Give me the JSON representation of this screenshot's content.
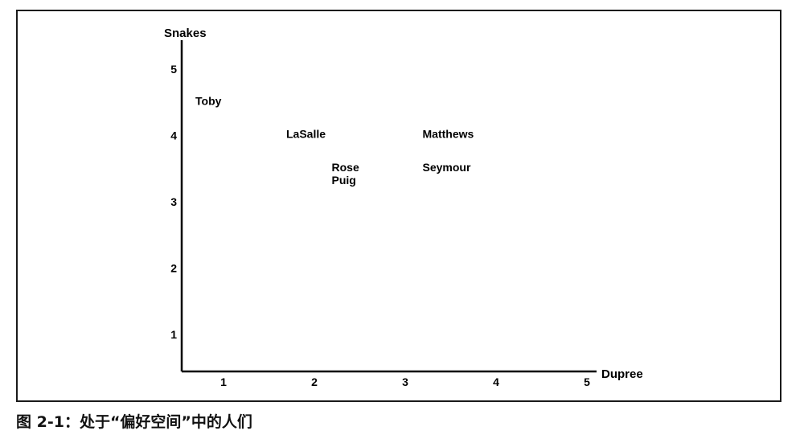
{
  "caption": "图 2-1：处于“偏好空间”中的人们",
  "chart_data": {
    "type": "scatter",
    "title": "",
    "xlabel": "Dupree",
    "ylabel": "Snakes",
    "xlim": [
      0.5,
      5.0
    ],
    "ylim": [
      0.4,
      5.5
    ],
    "x_ticks": [
      "1",
      "2",
      "3",
      "4",
      "5"
    ],
    "y_ticks": [
      "1",
      "2",
      "3",
      "4",
      "5"
    ],
    "grid": false,
    "legend": "none",
    "points": [
      {
        "label": "Toby",
        "x": 1.0,
        "y": 4.5
      },
      {
        "label": "LaSalle",
        "x": 2.0,
        "y": 4.0
      },
      {
        "label": "Rose",
        "x": 2.5,
        "y": 3.5
      },
      {
        "label": "Puig",
        "x": 2.5,
        "y": 3.5
      },
      {
        "label": "Matthews",
        "x": 3.5,
        "y": 4.0
      },
      {
        "label": "Seymour",
        "x": 3.5,
        "y": 3.5
      }
    ]
  }
}
